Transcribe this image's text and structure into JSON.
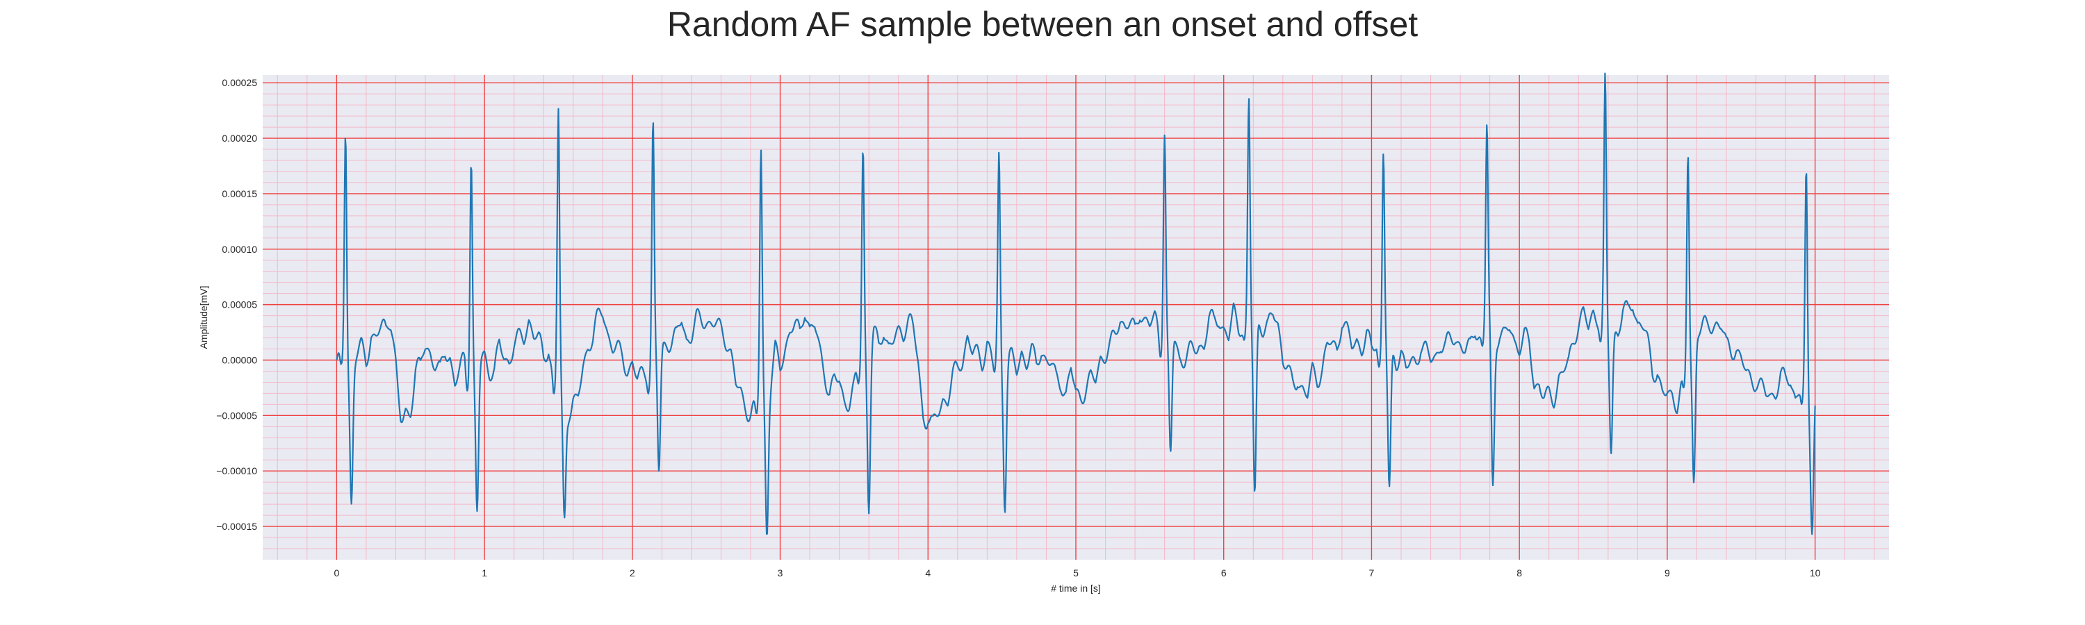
{
  "chart_data": {
    "type": "line",
    "title": "Random AF sample between an onset and offset",
    "xlabel": "# time in [s]",
    "ylabel": "Amplitude[mV]",
    "xlim": [
      -0.5,
      10.5
    ],
    "ylim": [
      -0.00018,
      0.000257
    ],
    "x_ticks": [
      0,
      1,
      2,
      3,
      4,
      5,
      6,
      7,
      8,
      9,
      10
    ],
    "x_tick_labels": [
      "0",
      "1",
      "2",
      "3",
      "4",
      "5",
      "6",
      "7",
      "8",
      "9",
      "10"
    ],
    "y_ticks": [
      -0.00015,
      -0.0001,
      -5e-05,
      0,
      5e-05,
      0.0001,
      0.00015,
      0.0002,
      0.00025
    ],
    "y_tick_labels": [
      "−0.00015",
      "−0.00010",
      "−0.00005",
      "0.00000",
      "0.00005",
      "0.00010",
      "0.00015",
      "0.00020",
      "0.00025"
    ],
    "grid": true,
    "major_grid_color": "#f04040",
    "minor_grid_color": "#f4b8c8",
    "background_color": "#eaeaf2",
    "line_color": "#1f77b4",
    "series": [
      {
        "beats": [
          {
            "t": 0.06,
            "peak": 0.000213,
            "trough": -0.000126
          },
          {
            "t": 0.91,
            "peak": 0.000198,
            "trough": -0.000133
          },
          {
            "t": 1.5,
            "peak": 0.000237,
            "trough": -0.00011
          },
          {
            "t": 2.14,
            "peak": 0.000211,
            "trough": -0.000115
          },
          {
            "t": 2.87,
            "peak": 0.000219,
            "trough": -0.000135
          },
          {
            "t": 3.56,
            "peak": 0.000192,
            "trough": -0.000146
          },
          {
            "t": 4.48,
            "peak": 0.000181,
            "trough": -0.000129
          },
          {
            "t": 5.6,
            "peak": 0.000191,
            "trough": -0.000113
          },
          {
            "t": 6.17,
            "peak": 0.000204,
            "trough": -0.00016
          },
          {
            "t": 7.08,
            "peak": 0.00018,
            "trough": -0.000133
          },
          {
            "t": 7.78,
            "peak": 0.000181,
            "trough": -0.000143
          },
          {
            "t": 8.58,
            "peak": 0.000223,
            "trough": -0.000107
          },
          {
            "t": 9.14,
            "peak": 0.0002,
            "trough": -0.000128
          },
          {
            "t": 9.94,
            "peak": 0.000202,
            "trough": -0.00011
          }
        ],
        "baseline": [
          [
            0.0,
            0.0
          ],
          [
            0.2,
            1e-05
          ],
          [
            0.35,
            3.5e-05
          ],
          [
            0.45,
            -5e-05
          ],
          [
            0.6,
            1e-05
          ],
          [
            0.8,
            -1e-05
          ],
          [
            1.1,
            0.0
          ],
          [
            1.3,
            3e-05
          ],
          [
            1.6,
            -4e-05
          ],
          [
            1.78,
            4.5e-05
          ],
          [
            2.0,
            -1.5e-05
          ],
          [
            2.35,
            3e-05
          ],
          [
            2.6,
            2e-05
          ],
          [
            2.8,
            -4e-05
          ],
          [
            3.15,
            3.5e-05
          ],
          [
            3.4,
            -3e-05
          ],
          [
            3.7,
            2e-05
          ],
          [
            3.85,
            4e-05
          ],
          [
            4.0,
            -5e-05
          ],
          [
            4.3,
            1.5e-05
          ],
          [
            4.7,
            0.0
          ],
          [
            5.0,
            -2e-05
          ],
          [
            5.4,
            3.5e-05
          ],
          [
            5.8,
            0.0
          ],
          [
            5.95,
            3e-05
          ],
          [
            6.35,
            3e-05
          ],
          [
            6.5,
            -3e-05
          ],
          [
            6.8,
            2.5e-05
          ],
          [
            7.25,
            0.0
          ],
          [
            7.55,
            2e-05
          ],
          [
            7.95,
            3e-05
          ],
          [
            8.2,
            -3e-05
          ],
          [
            8.45,
            3e-05
          ],
          [
            8.8,
            4e-05
          ],
          [
            9.0,
            -4e-05
          ],
          [
            9.3,
            3.5e-05
          ],
          [
            9.6,
            -2e-05
          ],
          [
            10.0,
            -3.5e-05
          ]
        ]
      }
    ]
  }
}
